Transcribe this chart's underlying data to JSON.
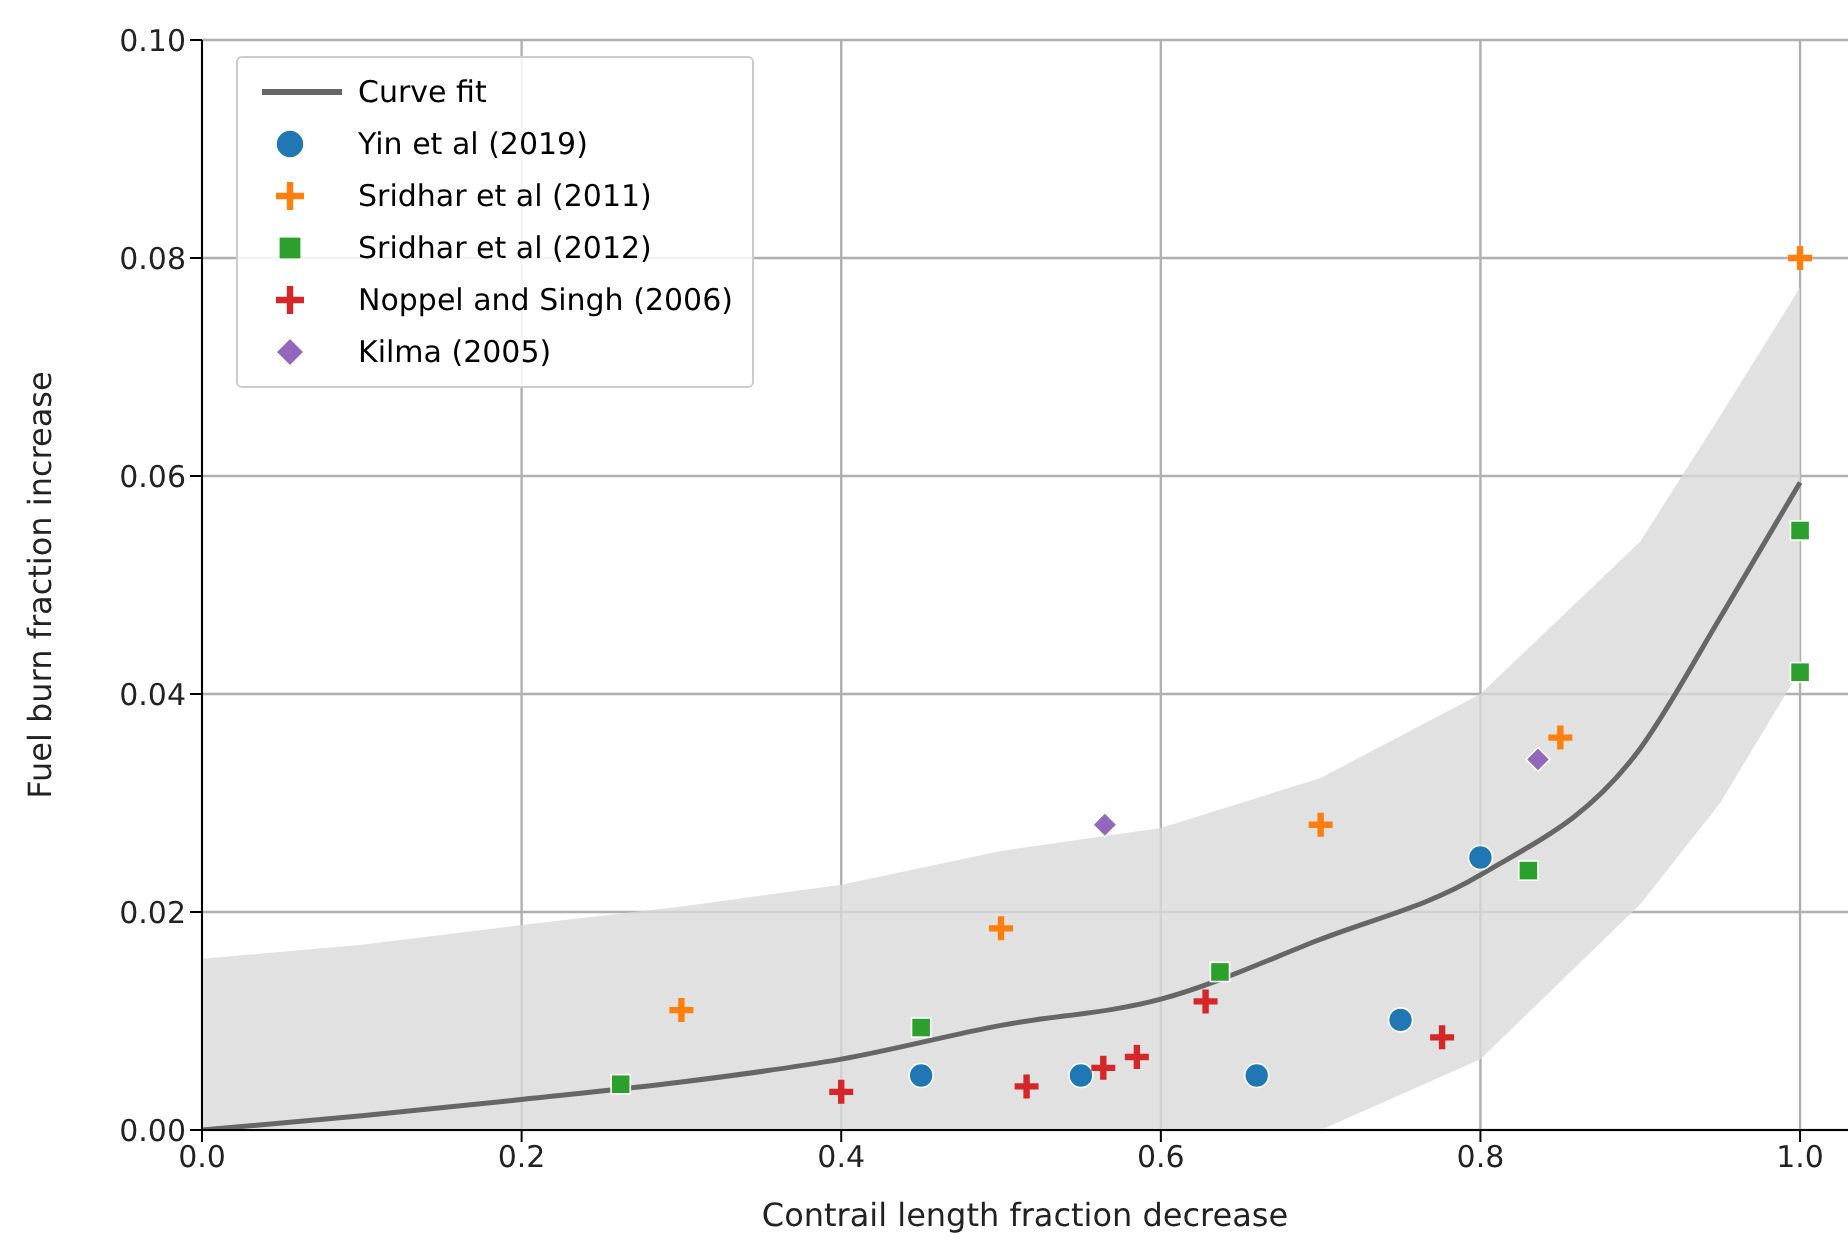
{
  "chart_data": {
    "type": "scatter",
    "xlabel": "Contrail length fraction decrease",
    "ylabel": "Fuel burn fraction increase",
    "xlim": [
      0,
      1.03
    ],
    "ylim": [
      0,
      0.1
    ],
    "xticks": [
      {
        "value": 0,
        "label": "0.0"
      },
      {
        "value": 0.2,
        "label": "0.2"
      },
      {
        "value": 0.4,
        "label": "0.4"
      },
      {
        "value": 0.6,
        "label": "0.6"
      },
      {
        "value": 0.8,
        "label": "0.8"
      },
      {
        "value": 1,
        "label": "1.0"
      }
    ],
    "yticks": [
      {
        "value": 0,
        "label": "0.00"
      },
      {
        "value": 0.02,
        "label": "0.02"
      },
      {
        "value": 0.04,
        "label": "0.04"
      },
      {
        "value": 0.06,
        "label": "0.06"
      },
      {
        "value": 0.08,
        "label": "0.08"
      },
      {
        "value": 0.1,
        "label": "0.10"
      }
    ],
    "grid": true,
    "legend": "top left",
    "series": [
      {
        "name": "Curve fit",
        "type": "line",
        "color": "#666666",
        "marker": "none",
        "x": [
          0,
          0.1,
          0.2,
          0.3,
          0.4,
          0.5,
          0.6,
          0.7,
          0.8,
          0.9,
          0.95,
          1.0
        ],
        "values": [
          0,
          0.0013,
          0.0028,
          0.0044,
          0.0065,
          0.0096,
          0.012,
          0.0175,
          0.0234,
          0.035,
          0.047,
          0.0594
        ],
        "lower": [
          0,
          0,
          0,
          0,
          0,
          0,
          0,
          0,
          0.0065,
          0.0207,
          0.03,
          0.0422
        ],
        "upper": [
          0.0157,
          0.017,
          0.0188,
          0.0205,
          0.0225,
          0.0256,
          0.0277,
          0.0323,
          0.04,
          0.054,
          0.0655,
          0.0773
        ]
      },
      {
        "name": "Yin et al (2019)",
        "color": "#1f77b4",
        "marker": "circle",
        "x": [
          0.45,
          0.55,
          0.66,
          0.75,
          0.8
        ],
        "values": [
          0.005,
          0.005,
          0.005,
          0.0101,
          0.025
        ]
      },
      {
        "name": "Sridhar et al (2011)",
        "color": "#ff7f0e",
        "marker": "cross",
        "x": [
          0.3,
          0.5,
          0.7,
          0.85,
          1.0
        ],
        "values": [
          0.011,
          0.0185,
          0.028,
          0.036,
          0.08
        ]
      },
      {
        "name": "Sridhar et al (2012)",
        "color": "#2ca02c",
        "marker": "square",
        "x": [
          0.262,
          0.45,
          0.637,
          0.83,
          1.0,
          1.0
        ],
        "values": [
          0.0042,
          0.0094,
          0.0145,
          0.0238,
          0.055,
          0.042
        ]
      },
      {
        "name": "Noppel and Singh (2006)",
        "color": "#d62728",
        "marker": "cross",
        "x": [
          0.4,
          0.516,
          0.564,
          0.585,
          0.628,
          0.776
        ],
        "values": [
          0.0035,
          0.004,
          0.0057,
          0.0067,
          0.0118,
          0.0085
        ]
      },
      {
        "name": "Kilma (2005)",
        "color": "#9467bd",
        "marker": "diamond",
        "x": [
          0.565,
          0.836
        ],
        "values": [
          0.028,
          0.034
        ]
      }
    ]
  }
}
